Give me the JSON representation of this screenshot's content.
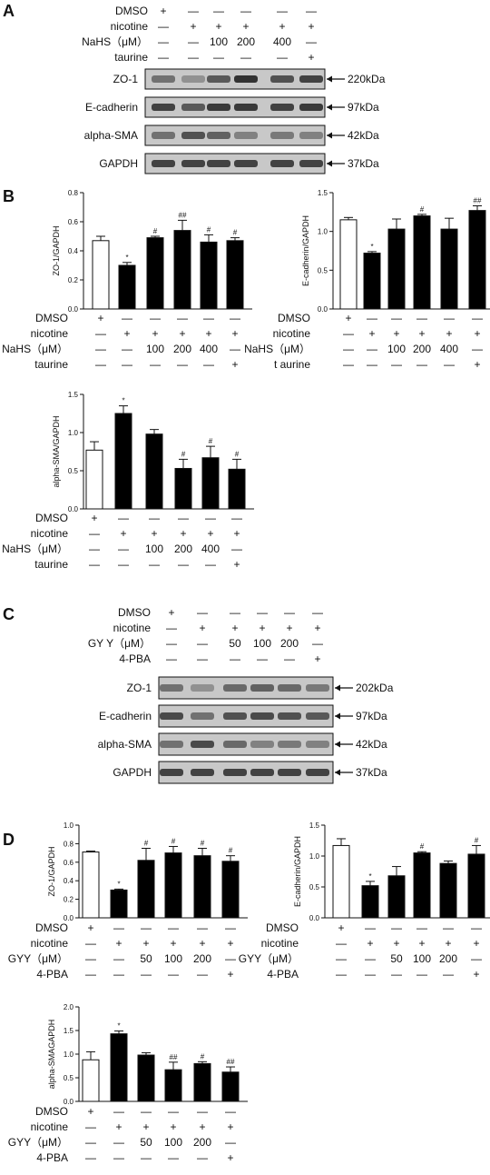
{
  "colors": {
    "control_bar": "#ffffff",
    "treated_bar": "#000000",
    "blot_bg": "#c8c8c8",
    "band": "#2a2a2a"
  },
  "panels": {
    "A": {
      "letter": "A",
      "rows": [
        {
          "label": "DMSO",
          "marks": [
            "+",
            "—",
            "—",
            "—",
            "—",
            "—"
          ]
        },
        {
          "label": "nicotine",
          "marks": [
            "—",
            "+",
            "+",
            "+",
            "+",
            "+"
          ]
        },
        {
          "label": "NaHS（μM）",
          "marks": [
            "—",
            "—",
            "100",
            "200",
            "400",
            "—"
          ]
        },
        {
          "label": "taurine",
          "marks": [
            "—",
            "—",
            "—",
            "—",
            "—",
            "+"
          ]
        }
      ],
      "blots": [
        {
          "name": "ZO-1",
          "size": "220kDa",
          "intensity": [
            0.55,
            0.35,
            0.7,
            0.95,
            0.75,
            0.85
          ]
        },
        {
          "name": "E-cadherin",
          "size": "97kDa",
          "intensity": [
            0.85,
            0.7,
            0.9,
            0.9,
            0.85,
            0.9
          ]
        },
        {
          "name": "alpha-SMA",
          "size": "42kDa",
          "intensity": [
            0.55,
            0.75,
            0.65,
            0.45,
            0.5,
            0.45
          ]
        },
        {
          "name": "GAPDH",
          "size": "37kDa",
          "intensity": [
            0.85,
            0.85,
            0.85,
            0.85,
            0.85,
            0.85
          ]
        }
      ]
    },
    "B": {
      "letter": "B",
      "row_labels_1": [
        "DMSO",
        "nicotine",
        "NaHS（μM）",
        "taurine"
      ],
      "row_labels_2": [
        "DMSO",
        "nicotine",
        "NaHS（μM）",
        "t aurine"
      ],
      "row_labels_3": [
        "DMSO",
        "nicotine",
        "NaHS（μM）",
        "taurine"
      ],
      "marks": [
        [
          "+",
          "—",
          "—",
          "—",
          "—",
          "—"
        ],
        [
          "—",
          "+",
          "+",
          "+",
          "+",
          "+"
        ],
        [
          "—",
          "—",
          "100",
          "200",
          "400",
          "—"
        ],
        [
          "—",
          "—",
          "—",
          "—",
          "—",
          "+"
        ]
      ]
    },
    "C": {
      "letter": "C",
      "rows": [
        {
          "label": "DMSO",
          "marks": [
            "+",
            "—",
            "—",
            "—",
            "—",
            "—"
          ]
        },
        {
          "label": "nicotine",
          "marks": [
            "—",
            "+",
            "+",
            "+",
            "+",
            "+"
          ]
        },
        {
          "label": "GY Y（μM）",
          "marks": [
            "—",
            "—",
            "50",
            "100",
            "200",
            "—"
          ]
        },
        {
          "label": "4-PBA",
          "marks": [
            "—",
            "—",
            "—",
            "—",
            "—",
            "+"
          ]
        }
      ],
      "blots": [
        {
          "name": "ZO-1",
          "size": "202kDa",
          "intensity": [
            0.55,
            0.35,
            0.6,
            0.65,
            0.6,
            0.5
          ]
        },
        {
          "name": "E-cadherin",
          "size": "97kDa",
          "intensity": [
            0.8,
            0.55,
            0.75,
            0.8,
            0.75,
            0.7
          ]
        },
        {
          "name": "alpha-SMA",
          "size": "42kDa",
          "intensity": [
            0.55,
            0.8,
            0.6,
            0.45,
            0.5,
            0.45
          ]
        },
        {
          "name": "GAPDH",
          "size": "37kDa",
          "intensity": [
            0.85,
            0.85,
            0.85,
            0.85,
            0.85,
            0.85
          ]
        }
      ]
    },
    "D": {
      "letter": "D",
      "row_labels": [
        "DMSO",
        "nicotine",
        "GYY（μM）",
        "4-PBA"
      ],
      "marks": [
        [
          "+",
          "—",
          "—",
          "—",
          "—",
          "—"
        ],
        [
          "—",
          "+",
          "+",
          "+",
          "+",
          "+"
        ],
        [
          "—",
          "—",
          "50",
          "100",
          "200",
          "—"
        ],
        [
          "—",
          "—",
          "—",
          "—",
          "—",
          "+"
        ]
      ]
    }
  },
  "chart_data": [
    {
      "id": "B1",
      "type": "bar",
      "ylabel": "ZO-1/GAPDH",
      "ylim": [
        0,
        0.8
      ],
      "ticks": [
        "0.0",
        "0.2",
        "0.4",
        "0.6",
        "0.8"
      ],
      "tickvals": [
        0,
        0.2,
        0.4,
        0.6,
        0.8
      ],
      "values": [
        0.47,
        0.3,
        0.49,
        0.54,
        0.46,
        0.47
      ],
      "errors": [
        0.03,
        0.02,
        0.01,
        0.07,
        0.05,
        0.02
      ],
      "sig": [
        "",
        "*",
        "#",
        "##",
        "#",
        "#"
      ]
    },
    {
      "id": "B2",
      "type": "bar",
      "ylabel": "E-cadherin/GAPDH",
      "ylim": [
        0,
        1.5
      ],
      "ticks": [
        "0.0",
        "0.5",
        "1.0",
        "1.5"
      ],
      "tickvals": [
        0,
        0.5,
        1.0,
        1.5
      ],
      "values": [
        1.15,
        0.72,
        1.03,
        1.2,
        1.03,
        1.27
      ],
      "errors": [
        0.03,
        0.02,
        0.13,
        0.02,
        0.14,
        0.06
      ],
      "sig": [
        "",
        "*",
        "",
        "#",
        "",
        "##"
      ]
    },
    {
      "id": "B3",
      "type": "bar",
      "ylabel": "alpha-SMA/GAPDH",
      "ylim": [
        0,
        1.5
      ],
      "ticks": [
        "0.0",
        "0.5",
        "1.0",
        "1.5"
      ],
      "tickvals": [
        0,
        0.5,
        1.0,
        1.5
      ],
      "values": [
        0.77,
        1.25,
        0.98,
        0.53,
        0.67,
        0.52
      ],
      "errors": [
        0.11,
        0.1,
        0.06,
        0.12,
        0.15,
        0.13
      ],
      "sig": [
        "",
        "*",
        "",
        "#",
        "#",
        "#"
      ]
    },
    {
      "id": "D1",
      "type": "bar",
      "ylabel": "ZO-1/GAPDH",
      "ylim": [
        0,
        1.0
      ],
      "ticks": [
        "0.0",
        "0.2",
        "0.4",
        "0.6",
        "0.8",
        "1.0"
      ],
      "tickvals": [
        0,
        0.2,
        0.4,
        0.6,
        0.8,
        1.0
      ],
      "values": [
        0.71,
        0.3,
        0.62,
        0.7,
        0.67,
        0.61
      ],
      "errors": [
        0.01,
        0.01,
        0.13,
        0.07,
        0.08,
        0.06
      ],
      "sig": [
        "",
        "*",
        "#",
        "#",
        "#",
        "#"
      ]
    },
    {
      "id": "D2",
      "type": "bar",
      "ylabel": "E-cadherin/GAPDH",
      "ylim": [
        0,
        1.5
      ],
      "ticks": [
        "0.0",
        "0.5",
        "1.0",
        "1.5"
      ],
      "tickvals": [
        0,
        0.5,
        1.0,
        1.5
      ],
      "values": [
        1.17,
        0.52,
        0.68,
        1.05,
        0.88,
        1.03
      ],
      "errors": [
        0.11,
        0.07,
        0.15,
        0.02,
        0.04,
        0.14
      ],
      "sig": [
        "",
        "*",
        "",
        "#",
        "",
        "#"
      ]
    },
    {
      "id": "D3",
      "type": "bar",
      "ylabel": "alpha-SMAGAPDH",
      "ylim": [
        0,
        2.0
      ],
      "ticks": [
        "0.0",
        "0.5",
        "1.0",
        "1.5",
        "2.0"
      ],
      "tickvals": [
        0,
        0.5,
        1.0,
        1.5,
        2.0
      ],
      "values": [
        0.88,
        1.43,
        0.98,
        0.67,
        0.8,
        0.62
      ],
      "errors": [
        0.17,
        0.06,
        0.05,
        0.16,
        0.04,
        0.11
      ],
      "sig": [
        "",
        "*",
        "",
        "##",
        "#",
        "##"
      ]
    }
  ]
}
